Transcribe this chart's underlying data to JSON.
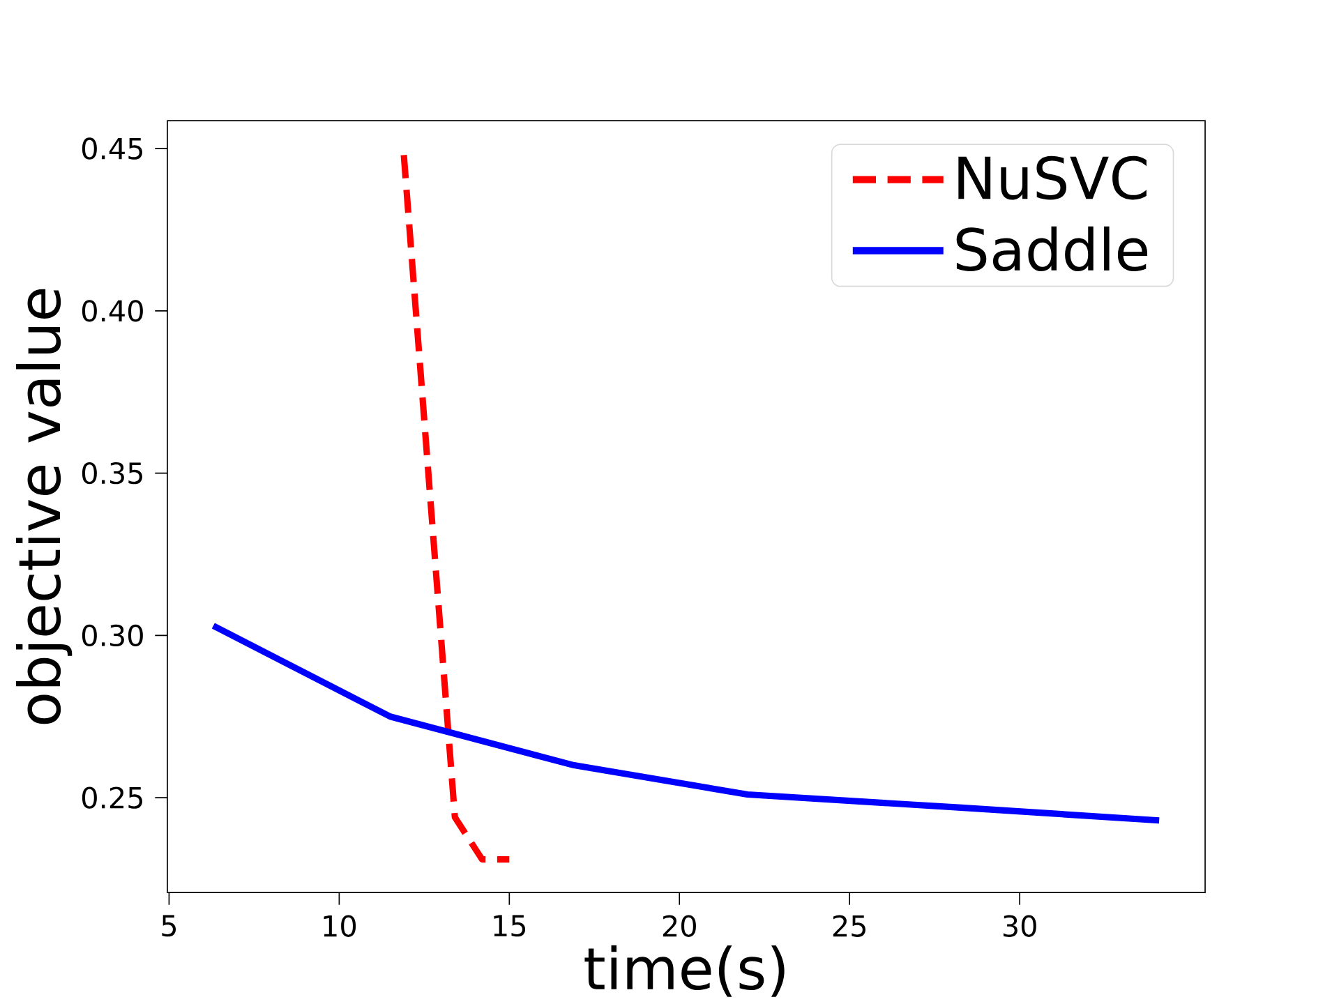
{
  "chart_data": {
    "type": "line",
    "xlabel": "time(s)",
    "ylabel": "objective value",
    "xlim": [
      4.95,
      35.45
    ],
    "ylim": [
      0.2208,
      0.4586
    ],
    "xticks": [
      5,
      10,
      15,
      20,
      25,
      30
    ],
    "yticks": [
      0.25,
      {
        "value": 0.3,
        "label": "0.30"
      },
      0.35,
      {
        "value": 0.4,
        "label": "0.40"
      },
      0.45
    ],
    "grid": false,
    "legend": "top right",
    "marker": "none",
    "series": [
      {
        "name": "NuSVC",
        "color": "#ff0000",
        "line_style": "dashed",
        "x": [
          11.9,
          13.4,
          14.2,
          15.0
        ],
        "values": [
          0.448,
          0.244,
          0.231,
          0.231
        ]
      },
      {
        "name": "Saddle",
        "color": "#0000ff",
        "line_style": "solid",
        "x": [
          6.3,
          11.5,
          16.9,
          22.0,
          28.2,
          34.1
        ],
        "values": [
          0.303,
          0.275,
          0.26,
          0.251,
          0.247,
          0.243
        ]
      }
    ]
  }
}
